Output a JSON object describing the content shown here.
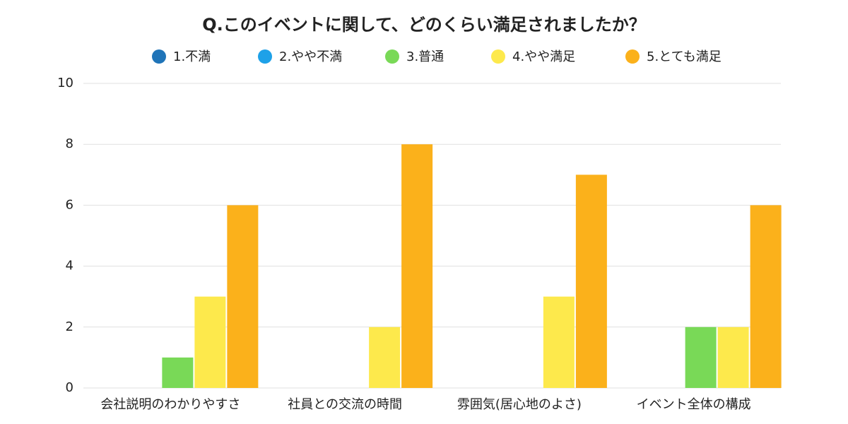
{
  "chart_data": {
    "type": "bar",
    "title": "Q.このイベントに関して、どのくらい満足されましたか？",
    "categories": [
      "会社説明のわかりやすさ",
      "社員との交流の時間",
      "雰囲気(居心地のよさ)",
      "イベント全体の構成"
    ],
    "series": [
      {
        "name": "1.不満",
        "color": "#1f74b8",
        "values": [
          0,
          0,
          0,
          0
        ]
      },
      {
        "name": "2.やや不満",
        "color": "#1ea1e8",
        "values": [
          0,
          0,
          0,
          0
        ]
      },
      {
        "name": "3.普通",
        "color": "#79d957",
        "values": [
          1,
          0,
          0,
          2
        ]
      },
      {
        "name": "4.やや満足",
        "color": "#fde94c",
        "values": [
          3,
          2,
          3,
          2
        ]
      },
      {
        "name": "5.とても満足",
        "color": "#fbb11b",
        "values": [
          6,
          8,
          7,
          6
        ]
      }
    ],
    "ylim": [
      0,
      10
    ],
    "yticks": [
      0,
      2,
      4,
      6,
      8,
      10
    ],
    "grid": true
  }
}
